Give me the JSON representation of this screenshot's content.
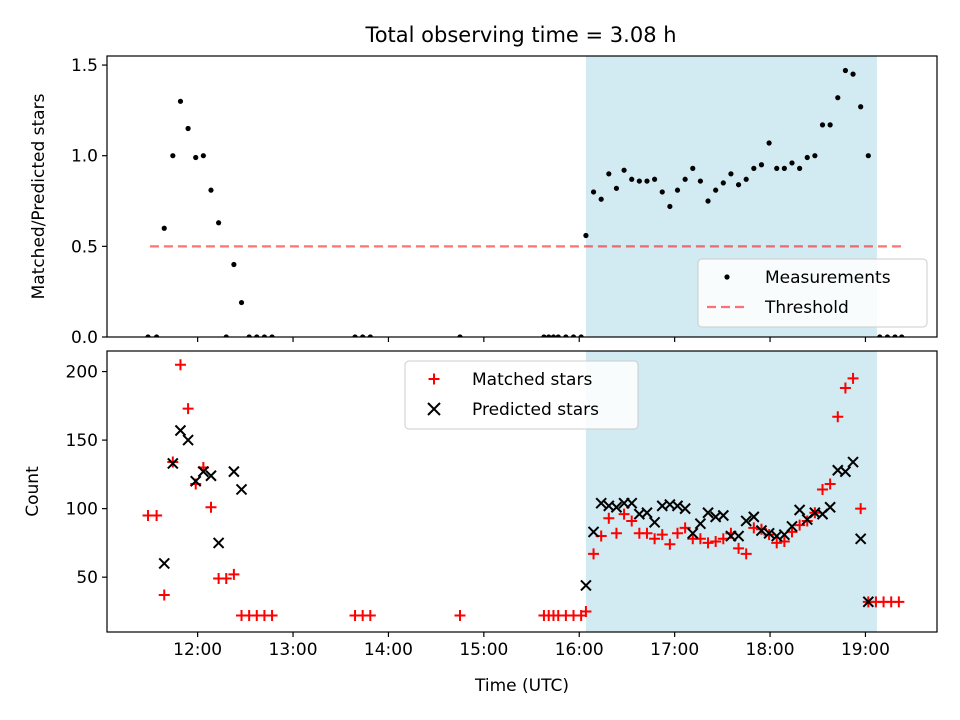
{
  "title": "Total observing time = 3.08 h",
  "colors": {
    "shade": "#add8e6",
    "measurement": "#000000",
    "threshold": "#ff0000",
    "matched": "#ff0000",
    "predicted": "#000000"
  },
  "chart_data": [
    {
      "type": "scatter",
      "ylabel": "Matched/Predicted stars",
      "xlabel": "",
      "xlim": [
        11.05,
        19.75
      ],
      "ylim": [
        0,
        1.55
      ],
      "x_ticks": [
        12,
        13,
        14,
        15,
        16,
        17,
        18,
        19
      ],
      "y_ticks": [
        0.0,
        0.5,
        1.0,
        1.5
      ],
      "y_tick_labels": [
        "0.0",
        "0.5",
        "1.0",
        "1.5"
      ],
      "shaded_region": [
        16.07,
        19.12
      ],
      "legend": {
        "position": "lower-right",
        "entries": [
          "Measurements",
          "Threshold"
        ]
      },
      "threshold": {
        "name": "Threshold",
        "value": 0.5,
        "x_range": [
          11.5,
          19.4
        ]
      },
      "series": [
        {
          "name": "Measurements",
          "points": [
            [
              11.48,
              0
            ],
            [
              11.57,
              0
            ],
            [
              11.65,
              0.6
            ],
            [
              11.74,
              1.0
            ],
            [
              11.82,
              1.3
            ],
            [
              11.9,
              1.15
            ],
            [
              11.98,
              0.99
            ],
            [
              12.06,
              1.0
            ],
            [
              12.14,
              0.81
            ],
            [
              12.22,
              0.63
            ],
            [
              12.3,
              0
            ],
            [
              12.38,
              0.4
            ],
            [
              12.46,
              0.19
            ],
            [
              12.54,
              0
            ],
            [
              12.62,
              0
            ],
            [
              12.7,
              0
            ],
            [
              12.78,
              0
            ],
            [
              13.65,
              0
            ],
            [
              13.73,
              0
            ],
            [
              13.81,
              0
            ],
            [
              14.75,
              0
            ],
            [
              15.63,
              0
            ],
            [
              15.68,
              0
            ],
            [
              15.73,
              0
            ],
            [
              15.78,
              0
            ],
            [
              15.86,
              0
            ],
            [
              15.94,
              0
            ],
            [
              16.02,
              0
            ],
            [
              16.07,
              0.56
            ],
            [
              16.15,
              0.8
            ],
            [
              16.23,
              0.76
            ],
            [
              16.31,
              0.9
            ],
            [
              16.39,
              0.82
            ],
            [
              16.47,
              0.92
            ],
            [
              16.55,
              0.87
            ],
            [
              16.63,
              0.86
            ],
            [
              16.71,
              0.86
            ],
            [
              16.79,
              0.87
            ],
            [
              16.87,
              0.8
            ],
            [
              16.95,
              0.72
            ],
            [
              17.03,
              0.81
            ],
            [
              17.11,
              0.87
            ],
            [
              17.19,
              0.93
            ],
            [
              17.27,
              0.86
            ],
            [
              17.35,
              0.75
            ],
            [
              17.43,
              0.81
            ],
            [
              17.51,
              0.85
            ],
            [
              17.59,
              0.9
            ],
            [
              17.67,
              0.84
            ],
            [
              17.75,
              0.87
            ],
            [
              17.83,
              0.93
            ],
            [
              17.91,
              0.95
            ],
            [
              17.99,
              1.07
            ],
            [
              18.07,
              0.93
            ],
            [
              18.15,
              0.93
            ],
            [
              18.23,
              0.96
            ],
            [
              18.31,
              0.93
            ],
            [
              18.39,
              0.99
            ],
            [
              18.47,
              1.0
            ],
            [
              18.55,
              1.17
            ],
            [
              18.63,
              1.17
            ],
            [
              18.71,
              1.32
            ],
            [
              18.79,
              1.47
            ],
            [
              18.87,
              1.45
            ],
            [
              18.95,
              1.27
            ],
            [
              19.03,
              1.0
            ],
            [
              19.15,
              0
            ],
            [
              19.23,
              0
            ],
            [
              19.31,
              0
            ],
            [
              19.38,
              0
            ]
          ]
        }
      ]
    },
    {
      "type": "scatter",
      "ylabel": "Count",
      "xlabel": "Time (UTC)",
      "xlim": [
        11.05,
        19.75
      ],
      "ylim": [
        10,
        215
      ],
      "x_ticks": [
        12,
        13,
        14,
        15,
        16,
        17,
        18,
        19
      ],
      "x_tick_labels": [
        "12:00",
        "13:00",
        "14:00",
        "15:00",
        "16:00",
        "17:00",
        "18:00",
        "19:00"
      ],
      "y_ticks": [
        50,
        100,
        150,
        200
      ],
      "y_tick_labels": [
        "50",
        "100",
        "150",
        "200"
      ],
      "shaded_region": [
        16.07,
        19.12
      ],
      "legend": {
        "position": "upper-center",
        "entries": [
          "Matched stars",
          "Predicted stars"
        ]
      },
      "series": [
        {
          "name": "Matched stars",
          "points": [
            [
              11.48,
              95
            ],
            [
              11.57,
              95
            ],
            [
              11.65,
              37
            ],
            [
              11.74,
              134
            ],
            [
              11.82,
              205
            ],
            [
              11.9,
              173
            ],
            [
              11.98,
              118
            ],
            [
              12.06,
              130
            ],
            [
              12.14,
              101
            ],
            [
              12.22,
              49
            ],
            [
              12.3,
              49
            ],
            [
              12.38,
              52
            ],
            [
              12.46,
              22
            ],
            [
              12.54,
              22
            ],
            [
              12.62,
              22
            ],
            [
              12.7,
              22
            ],
            [
              12.78,
              22
            ],
            [
              13.65,
              22
            ],
            [
              13.73,
              22
            ],
            [
              13.81,
              22
            ],
            [
              14.75,
              22
            ],
            [
              15.63,
              22
            ],
            [
              15.68,
              22
            ],
            [
              15.73,
              22
            ],
            [
              15.78,
              22
            ],
            [
              15.86,
              22
            ],
            [
              15.94,
              22
            ],
            [
              16.02,
              22
            ],
            [
              16.07,
              25
            ],
            [
              16.15,
              67
            ],
            [
              16.23,
              80
            ],
            [
              16.31,
              93
            ],
            [
              16.39,
              82
            ],
            [
              16.47,
              96
            ],
            [
              16.55,
              91
            ],
            [
              16.63,
              82
            ],
            [
              16.71,
              82
            ],
            [
              16.79,
              78
            ],
            [
              16.87,
              81
            ],
            [
              16.95,
              74
            ],
            [
              17.03,
              82
            ],
            [
              17.11,
              86
            ],
            [
              17.19,
              78
            ],
            [
              17.27,
              78
            ],
            [
              17.35,
              75
            ],
            [
              17.43,
              76
            ],
            [
              17.51,
              78
            ],
            [
              17.59,
              82
            ],
            [
              17.67,
              71
            ],
            [
              17.75,
              67
            ],
            [
              17.83,
              86
            ],
            [
              17.91,
              85
            ],
            [
              17.99,
              81
            ],
            [
              18.07,
              75
            ],
            [
              18.15,
              76
            ],
            [
              18.23,
              83
            ],
            [
              18.31,
              88
            ],
            [
              18.39,
              91
            ],
            [
              18.47,
              97
            ],
            [
              18.55,
              114
            ],
            [
              18.63,
              118
            ],
            [
              18.71,
              167
            ],
            [
              18.79,
              188
            ],
            [
              18.87,
              195
            ],
            [
              18.95,
              100
            ],
            [
              19.03,
              32
            ],
            [
              19.11,
              32
            ],
            [
              19.19,
              32
            ],
            [
              19.27,
              32
            ],
            [
              19.35,
              32
            ]
          ]
        },
        {
          "name": "Predicted stars",
          "points": [
            [
              11.65,
              60
            ],
            [
              11.74,
              133
            ],
            [
              11.82,
              157
            ],
            [
              11.9,
              150
            ],
            [
              11.98,
              120
            ],
            [
              12.06,
              127
            ],
            [
              12.14,
              124
            ],
            [
              12.22,
              75
            ],
            [
              12.38,
              127
            ],
            [
              12.46,
              114
            ],
            [
              16.07,
              44
            ],
            [
              16.15,
              83
            ],
            [
              16.23,
              104
            ],
            [
              16.31,
              102
            ],
            [
              16.39,
              101
            ],
            [
              16.47,
              104
            ],
            [
              16.55,
              104
            ],
            [
              16.63,
              96
            ],
            [
              16.71,
              97
            ],
            [
              16.79,
              90
            ],
            [
              16.87,
              102
            ],
            [
              16.95,
              103
            ],
            [
              17.03,
              102
            ],
            [
              17.11,
              100
            ],
            [
              17.19,
              82
            ],
            [
              17.27,
              89
            ],
            [
              17.35,
              97
            ],
            [
              17.43,
              94
            ],
            [
              17.51,
              95
            ],
            [
              17.59,
              80
            ],
            [
              17.67,
              80
            ],
            [
              17.75,
              91
            ],
            [
              17.83,
              94
            ],
            [
              17.91,
              84
            ],
            [
              17.99,
              82
            ],
            [
              18.07,
              80
            ],
            [
              18.15,
              81
            ],
            [
              18.23,
              87
            ],
            [
              18.31,
              99
            ],
            [
              18.39,
              92
            ],
            [
              18.47,
              97
            ],
            [
              18.55,
              96
            ],
            [
              18.63,
              101
            ],
            [
              18.71,
              128
            ],
            [
              18.79,
              127
            ],
            [
              18.87,
              134
            ],
            [
              18.95,
              78
            ],
            [
              19.03,
              32
            ]
          ]
        }
      ]
    }
  ]
}
